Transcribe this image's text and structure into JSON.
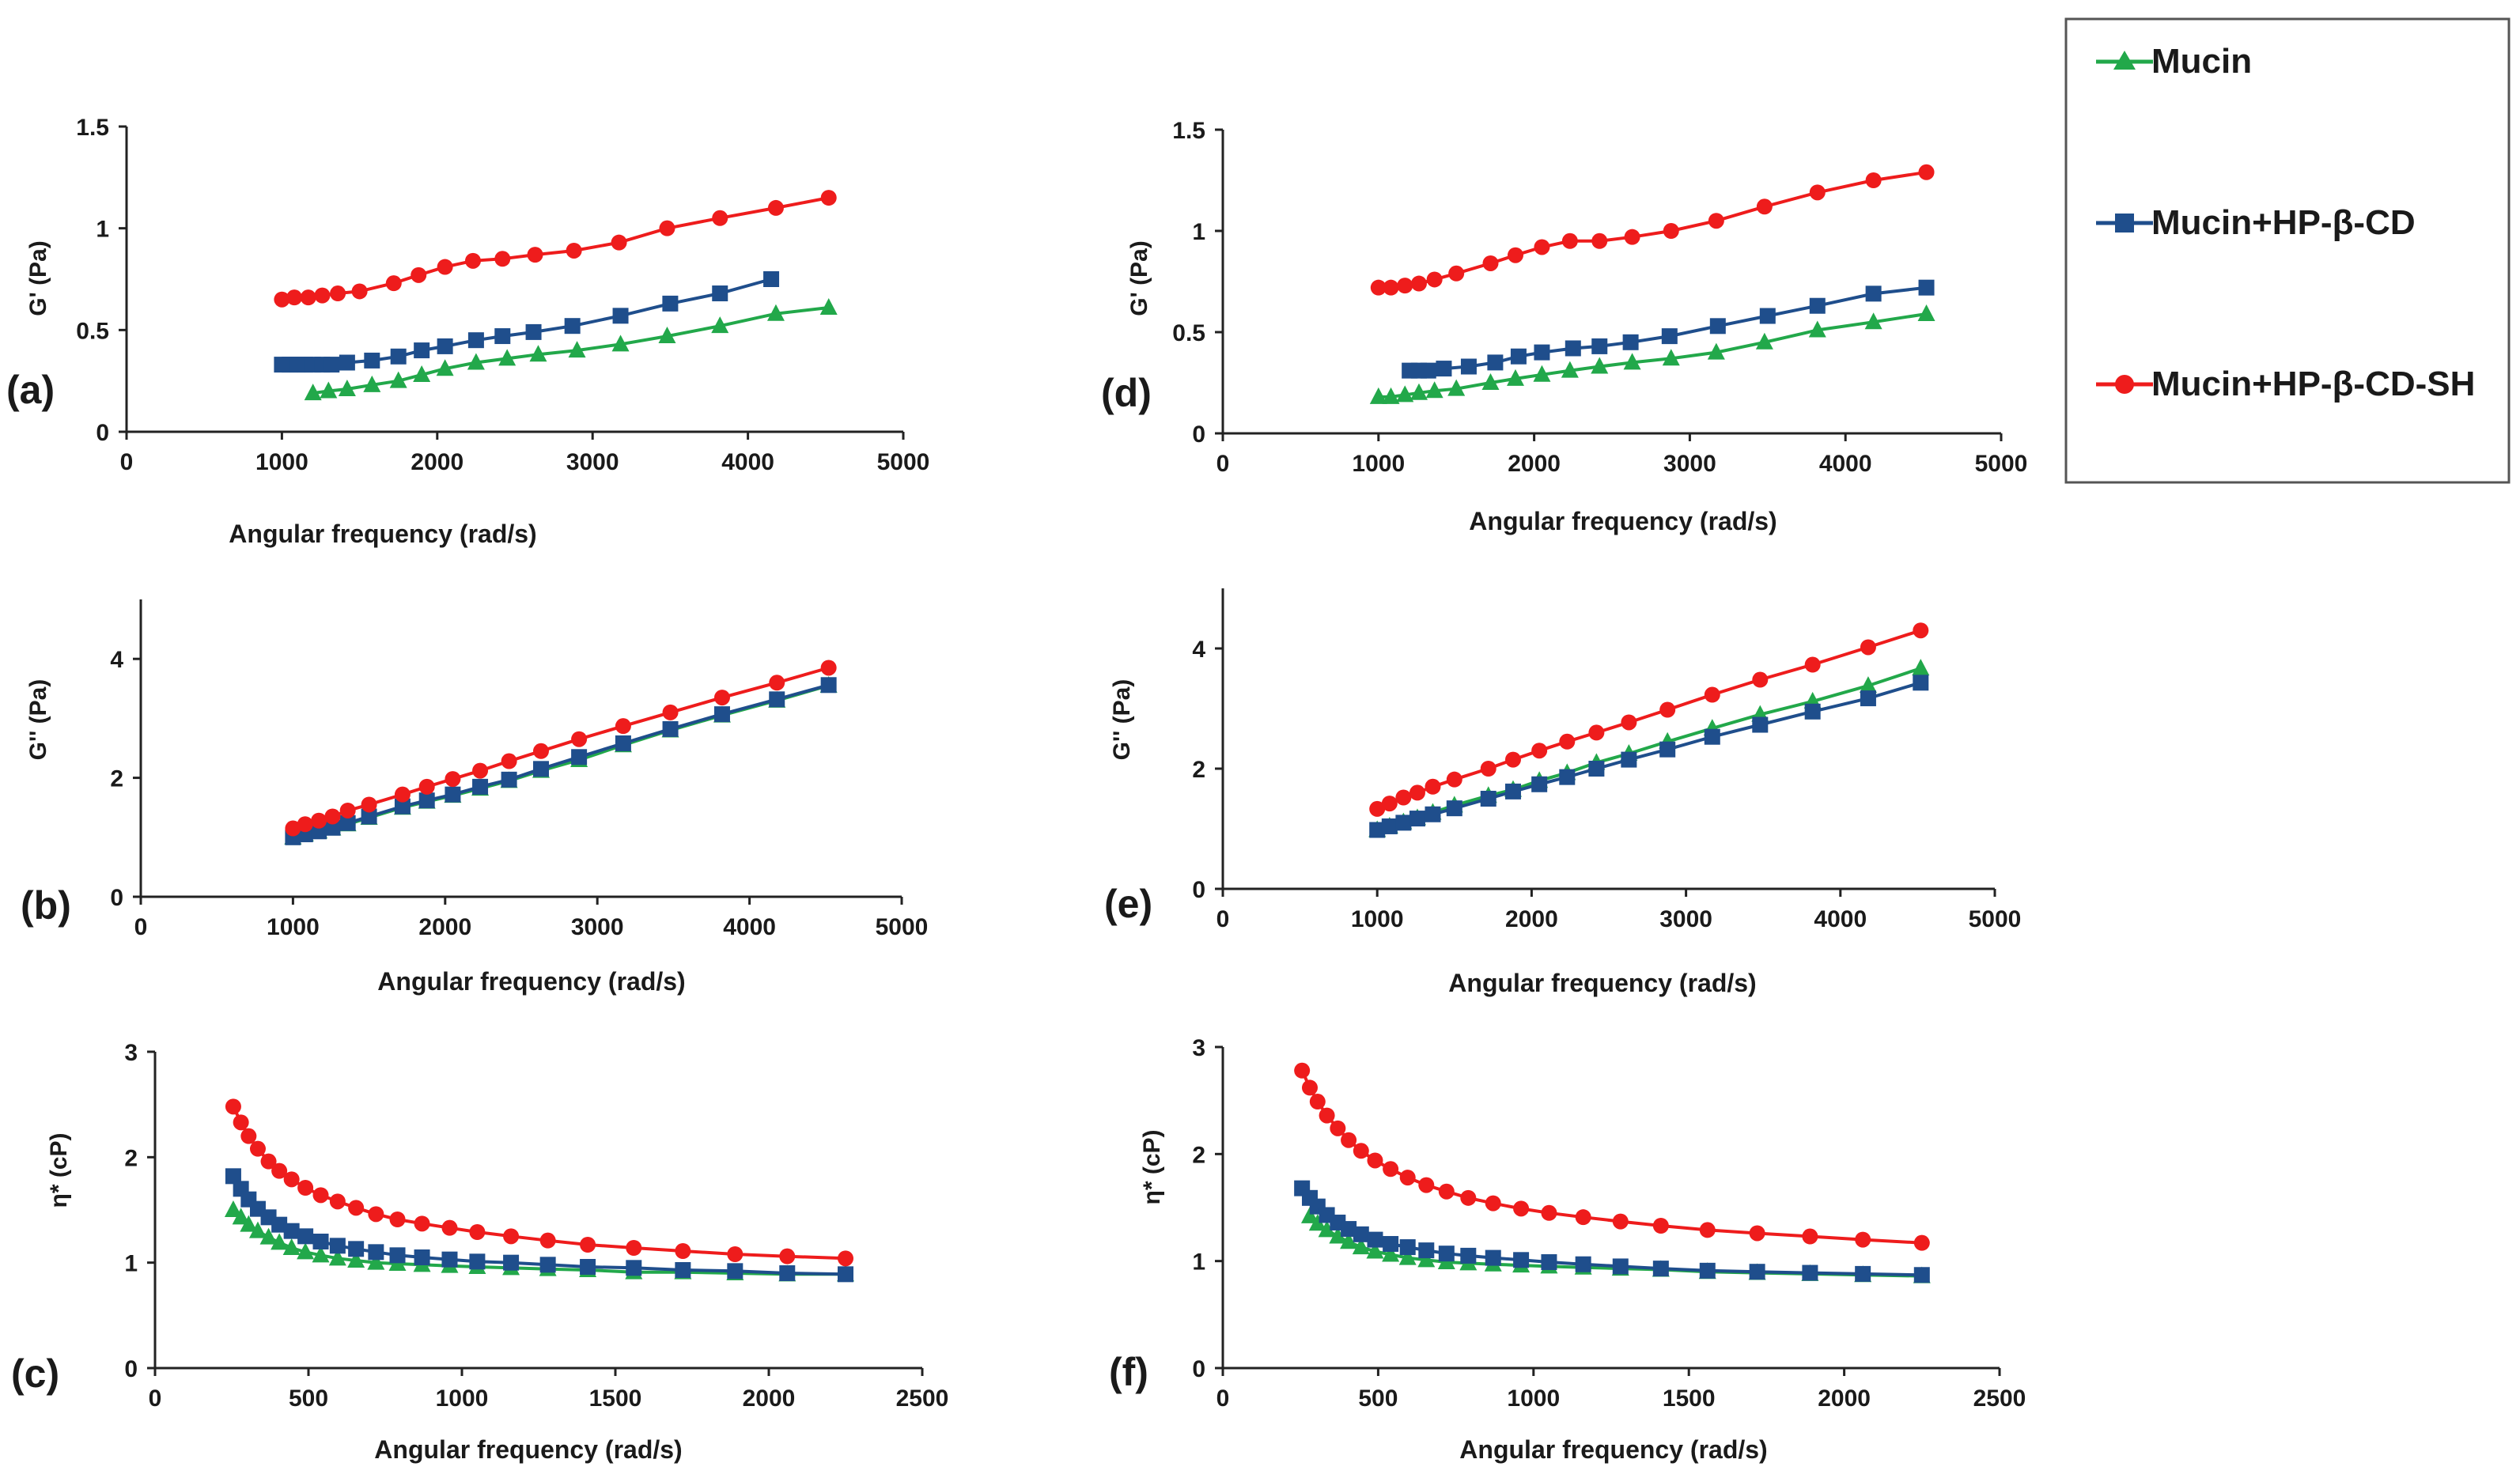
{
  "legend": {
    "entries": [
      {
        "name": "Mucin",
        "color": "#22a84a",
        "marker": "triangle"
      },
      {
        "name": "Mucin+HP-β-CD",
        "color": "#1f4e8c",
        "marker": "square"
      },
      {
        "name": "Mucin+HP-β-CD-SH",
        "color": "#ee1c1c",
        "marker": "circle"
      }
    ]
  },
  "chart_data": [
    {
      "id": "a",
      "panel_label": "(a)",
      "type": "line",
      "xlabel": "Angular frequency (rad/s)",
      "ylabel": "G' (Pa)",
      "xlim": [
        0,
        5000
      ],
      "ylim": [
        0,
        1.5
      ],
      "xticks": [
        0,
        1000,
        2000,
        3000,
        4000,
        5000
      ],
      "yticks": [
        0,
        0.5,
        1,
        1.5
      ],
      "ytick_labels": [
        "0",
        "0.5",
        "1",
        "1.5"
      ],
      "series": [
        {
          "name": "Mucin",
          "x": [
            1200,
            1300,
            1420,
            1580,
            1750,
            1900,
            2050,
            2250,
            2450,
            2650,
            2900,
            3180,
            3480,
            3820,
            4180,
            4520
          ],
          "y": [
            0.19,
            0.2,
            0.21,
            0.23,
            0.25,
            0.28,
            0.31,
            0.34,
            0.36,
            0.38,
            0.4,
            0.43,
            0.47,
            0.52,
            0.58,
            0.61
          ]
        },
        {
          "name": "Mucin+HP-β-CD",
          "x": [
            1000,
            1050,
            1100,
            1150,
            1200,
            1260,
            1320,
            1420,
            1580,
            1750,
            1900,
            2050,
            2250,
            2420,
            2620,
            2870,
            3180,
            3500,
            3820,
            4150
          ],
          "y": [
            0.33,
            0.33,
            0.33,
            0.33,
            0.33,
            0.33,
            0.33,
            0.34,
            0.35,
            0.37,
            0.4,
            0.42,
            0.45,
            0.47,
            0.49,
            0.52,
            0.57,
            0.63,
            0.68,
            0.75
          ]
        },
        {
          "name": "Mucin+HP-β-CD-SH",
          "x": [
            1000,
            1080,
            1170,
            1260,
            1360,
            1500,
            1720,
            1880,
            2050,
            2230,
            2420,
            2630,
            2880,
            3170,
            3480,
            3820,
            4180,
            4520
          ],
          "y": [
            0.65,
            0.66,
            0.66,
            0.67,
            0.68,
            0.69,
            0.73,
            0.77,
            0.81,
            0.84,
            0.85,
            0.87,
            0.89,
            0.93,
            1.0,
            1.05,
            1.1,
            1.15
          ]
        }
      ]
    },
    {
      "id": "b",
      "panel_label": "(b)",
      "type": "line",
      "xlabel": "Angular frequency (rad/s)",
      "ylabel": "G'' (Pa)",
      "xlim": [
        0,
        5000
      ],
      "ylim": [
        0,
        5
      ],
      "xticks": [
        0,
        1000,
        2000,
        3000,
        4000,
        5000
      ],
      "yticks": [
        0,
        2,
        4
      ],
      "ytick_labels": [
        "0",
        "2",
        "4"
      ],
      "series": [
        {
          "name": "Mucin",
          "x": [
            1000,
            1080,
            1170,
            1260,
            1360,
            1500,
            1720,
            1880,
            2050,
            2230,
            2420,
            2630,
            2880,
            3170,
            3480,
            3820,
            4180,
            4520
          ],
          "y": [
            1.0,
            1.05,
            1.1,
            1.15,
            1.22,
            1.33,
            1.5,
            1.6,
            1.7,
            1.82,
            1.95,
            2.12,
            2.3,
            2.55,
            2.8,
            3.05,
            3.3,
            3.55
          ]
        },
        {
          "name": "Mucin+HP-β-CD",
          "x": [
            1000,
            1080,
            1170,
            1260,
            1360,
            1500,
            1720,
            1880,
            2050,
            2230,
            2420,
            2630,
            2880,
            3170,
            3480,
            3820,
            4180,
            4520
          ],
          "y": [
            1.0,
            1.05,
            1.1,
            1.16,
            1.24,
            1.35,
            1.52,
            1.62,
            1.72,
            1.85,
            1.97,
            2.15,
            2.35,
            2.58,
            2.82,
            3.07,
            3.32,
            3.56
          ]
        },
        {
          "name": "Mucin+HP-β-CD-SH",
          "x": [
            1000,
            1080,
            1170,
            1260,
            1360,
            1500,
            1720,
            1880,
            2050,
            2230,
            2420,
            2630,
            2880,
            3170,
            3480,
            3820,
            4180,
            4520
          ],
          "y": [
            1.15,
            1.22,
            1.28,
            1.35,
            1.45,
            1.55,
            1.72,
            1.85,
            1.98,
            2.12,
            2.28,
            2.45,
            2.65,
            2.87,
            3.1,
            3.35,
            3.6,
            3.85
          ]
        }
      ]
    },
    {
      "id": "c",
      "panel_label": "(c)",
      "type": "line",
      "xlabel": "Angular frequency (rad/s)",
      "ylabel": "η* (cP)",
      "xlim": [
        0,
        2500
      ],
      "ylim": [
        0,
        3
      ],
      "xticks": [
        0,
        500,
        1000,
        1500,
        2000,
        2500
      ],
      "yticks": [
        0,
        1,
        2,
        3
      ],
      "ytick_labels": [
        "0",
        "1",
        "2",
        "3"
      ],
      "series": [
        {
          "name": "Mucin",
          "x": [
            255,
            280,
            305,
            335,
            370,
            405,
            445,
            490,
            540,
            595,
            655,
            720,
            790,
            870,
            960,
            1050,
            1160,
            1280,
            1410,
            1560,
            1720,
            1890,
            2060,
            2250
          ],
          "y": [
            1.5,
            1.43,
            1.36,
            1.3,
            1.24,
            1.19,
            1.14,
            1.1,
            1.07,
            1.04,
            1.02,
            1.0,
            0.99,
            0.98,
            0.97,
            0.96,
            0.95,
            0.94,
            0.93,
            0.91,
            0.91,
            0.9,
            0.89,
            0.89
          ]
        },
        {
          "name": "Mucin+HP-β-CD",
          "x": [
            255,
            280,
            305,
            335,
            370,
            405,
            445,
            490,
            540,
            595,
            655,
            720,
            790,
            870,
            960,
            1050,
            1160,
            1280,
            1410,
            1560,
            1720,
            1890,
            2060,
            2250
          ],
          "y": [
            1.82,
            1.7,
            1.6,
            1.51,
            1.43,
            1.36,
            1.3,
            1.25,
            1.2,
            1.16,
            1.13,
            1.1,
            1.07,
            1.05,
            1.03,
            1.01,
            1.0,
            0.98,
            0.96,
            0.95,
            0.93,
            0.92,
            0.9,
            0.89
          ]
        },
        {
          "name": "Mucin+HP-β-CD-SH",
          "x": [
            255,
            280,
            305,
            335,
            370,
            405,
            445,
            490,
            540,
            595,
            655,
            720,
            790,
            870,
            960,
            1050,
            1160,
            1280,
            1410,
            1560,
            1720,
            1890,
            2060,
            2250
          ],
          "y": [
            2.48,
            2.33,
            2.2,
            2.08,
            1.96,
            1.87,
            1.79,
            1.71,
            1.64,
            1.58,
            1.52,
            1.46,
            1.41,
            1.37,
            1.33,
            1.29,
            1.25,
            1.21,
            1.17,
            1.14,
            1.11,
            1.08,
            1.06,
            1.04
          ]
        }
      ]
    },
    {
      "id": "d",
      "panel_label": "(d)",
      "type": "line",
      "xlabel": "Angular frequency (rad/s)",
      "ylabel": "G' (Pa)",
      "xlim": [
        0,
        5000
      ],
      "ylim": [
        0,
        1.5
      ],
      "xticks": [
        0,
        1000,
        2000,
        3000,
        4000,
        5000
      ],
      "yticks": [
        0,
        0.5,
        1,
        1.5
      ],
      "ytick_labels": [
        "0",
        "0.5",
        "1",
        "1.5"
      ],
      "series": [
        {
          "name": "Mucin",
          "x": [
            1000,
            1080,
            1170,
            1260,
            1360,
            1500,
            1720,
            1880,
            2050,
            2230,
            2420,
            2630,
            2880,
            3170,
            3480,
            3820,
            4180,
            4520
          ],
          "y": [
            0.18,
            0.18,
            0.19,
            0.2,
            0.21,
            0.22,
            0.25,
            0.27,
            0.29,
            0.31,
            0.33,
            0.35,
            0.37,
            0.4,
            0.45,
            0.51,
            0.55,
            0.59
          ]
        },
        {
          "name": "Mucin+HP-β-CD",
          "x": [
            1200,
            1260,
            1320,
            1420,
            1580,
            1750,
            1900,
            2050,
            2250,
            2420,
            2620,
            2870,
            3180,
            3500,
            3820,
            4180,
            4520
          ],
          "y": [
            0.31,
            0.31,
            0.31,
            0.32,
            0.33,
            0.35,
            0.38,
            0.4,
            0.42,
            0.43,
            0.45,
            0.48,
            0.53,
            0.58,
            0.63,
            0.69,
            0.72
          ]
        },
        {
          "name": "Mucin+HP-β-CD-SH",
          "x": [
            1000,
            1080,
            1170,
            1260,
            1360,
            1500,
            1720,
            1880,
            2050,
            2230,
            2420,
            2630,
            2880,
            3170,
            3480,
            3820,
            4180,
            4520
          ],
          "y": [
            0.72,
            0.72,
            0.73,
            0.74,
            0.76,
            0.79,
            0.84,
            0.88,
            0.92,
            0.95,
            0.95,
            0.97,
            1.0,
            1.05,
            1.12,
            1.19,
            1.25,
            1.29
          ]
        }
      ]
    },
    {
      "id": "e",
      "panel_label": "(e)",
      "type": "line",
      "xlabel": "Angular frequency (rad/s)",
      "ylabel": "G'' (Pa)",
      "xlim": [
        0,
        5000
      ],
      "ylim": [
        0,
        5
      ],
      "xticks": [
        0,
        1000,
        2000,
        3000,
        4000,
        5000
      ],
      "yticks": [
        0,
        2,
        4
      ],
      "ytick_labels": [
        "0",
        "2",
        "4"
      ],
      "series": [
        {
          "name": "Mucin",
          "x": [
            1000,
            1080,
            1170,
            1260,
            1360,
            1500,
            1720,
            1880,
            2050,
            2230,
            2420,
            2630,
            2880,
            3170,
            3480,
            3820,
            4180,
            4520
          ],
          "y": [
            0.98,
            1.04,
            1.11,
            1.18,
            1.27,
            1.39,
            1.55,
            1.65,
            1.8,
            1.93,
            2.1,
            2.25,
            2.45,
            2.67,
            2.9,
            3.12,
            3.38,
            3.67
          ]
        },
        {
          "name": "Mucin+HP-β-CD",
          "x": [
            1000,
            1080,
            1170,
            1260,
            1360,
            1500,
            1720,
            1880,
            2050,
            2230,
            2420,
            2630,
            2880,
            3170,
            3480,
            3820,
            4180,
            4520
          ],
          "y": [
            0.98,
            1.04,
            1.1,
            1.17,
            1.24,
            1.34,
            1.5,
            1.62,
            1.74,
            1.86,
            2.0,
            2.15,
            2.32,
            2.53,
            2.73,
            2.95,
            3.17,
            3.43
          ]
        },
        {
          "name": "Mucin+HP-β-CD-SH",
          "x": [
            1000,
            1080,
            1170,
            1260,
            1360,
            1500,
            1720,
            1880,
            2050,
            2230,
            2420,
            2630,
            2880,
            3170,
            3480,
            3820,
            4180,
            4520
          ],
          "y": [
            1.33,
            1.42,
            1.52,
            1.6,
            1.7,
            1.82,
            2.0,
            2.15,
            2.3,
            2.45,
            2.6,
            2.77,
            2.98,
            3.23,
            3.48,
            3.73,
            4.02,
            4.3
          ]
        }
      ]
    },
    {
      "id": "f",
      "panel_label": "(f)",
      "type": "line",
      "xlabel": "Angular frequency (rad/s)",
      "ylabel": "η* (cP)",
      "xlim": [
        0,
        2500
      ],
      "ylim": [
        0,
        3
      ],
      "xticks": [
        0,
        500,
        1000,
        1500,
        2000,
        2500
      ],
      "yticks": [
        0,
        1,
        2,
        3
      ],
      "ytick_labels": [
        "0",
        "1",
        "2",
        "3"
      ],
      "series": [
        {
          "name": "Mucin",
          "x": [
            280,
            305,
            335,
            370,
            405,
            445,
            490,
            540,
            595,
            655,
            720,
            790,
            870,
            960,
            1050,
            1160,
            1280,
            1410,
            1560,
            1720,
            1890,
            2060,
            2250
          ],
          "y": [
            1.42,
            1.35,
            1.29,
            1.23,
            1.18,
            1.13,
            1.09,
            1.06,
            1.03,
            1.01,
            0.99,
            0.98,
            0.97,
            0.96,
            0.95,
            0.94,
            0.93,
            0.92,
            0.9,
            0.89,
            0.88,
            0.87,
            0.86
          ]
        },
        {
          "name": "Mucin+HP-β-CD",
          "x": [
            255,
            280,
            305,
            335,
            370,
            405,
            445,
            490,
            540,
            595,
            655,
            720,
            790,
            870,
            960,
            1050,
            1160,
            1280,
            1410,
            1560,
            1720,
            1890,
            2060,
            2250
          ],
          "y": [
            1.68,
            1.59,
            1.51,
            1.43,
            1.36,
            1.3,
            1.25,
            1.2,
            1.16,
            1.13,
            1.1,
            1.07,
            1.05,
            1.03,
            1.01,
            0.99,
            0.97,
            0.95,
            0.93,
            0.91,
            0.9,
            0.89,
            0.88,
            0.87
          ]
        },
        {
          "name": "Mucin+HP-β-CD-SH",
          "x": [
            255,
            280,
            305,
            335,
            370,
            405,
            445,
            490,
            540,
            595,
            655,
            720,
            790,
            870,
            960,
            1050,
            1160,
            1280,
            1410,
            1560,
            1720,
            1890,
            2060,
            2250
          ],
          "y": [
            2.78,
            2.62,
            2.49,
            2.36,
            2.24,
            2.13,
            2.03,
            1.94,
            1.86,
            1.78,
            1.71,
            1.65,
            1.59,
            1.54,
            1.49,
            1.45,
            1.41,
            1.37,
            1.33,
            1.29,
            1.26,
            1.23,
            1.2,
            1.17
          ]
        }
      ]
    }
  ]
}
